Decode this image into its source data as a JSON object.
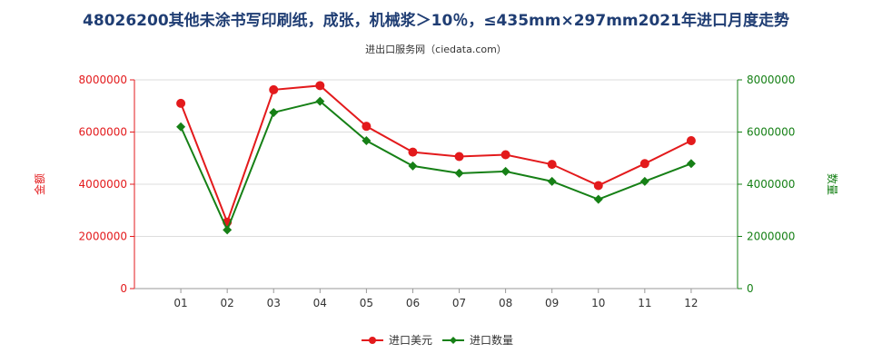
{
  "title": "48026200其他未涂书写印刷纸，成张，机械浆＞10％，≤435mm×297mm2021年进口月度走势",
  "subtitle": "进出口服务网（ciedata.com）",
  "colors": {
    "amount": "#e31a1c",
    "quantity": "#168016",
    "title": "#1f3d73"
  },
  "chart_data": {
    "type": "line",
    "categories": [
      "01",
      "02",
      "03",
      "04",
      "05",
      "06",
      "07",
      "08",
      "09",
      "10",
      "11",
      "12"
    ],
    "series": [
      {
        "name": "进口美元",
        "axis": "left",
        "values": [
          7100000,
          2550000,
          7620000,
          7780000,
          6220000,
          5230000,
          5060000,
          5130000,
          4760000,
          3950000,
          4790000,
          5670000
        ]
      },
      {
        "name": "进口数量",
        "axis": "right",
        "values": [
          6200000,
          2250000,
          6750000,
          7180000,
          5670000,
          4700000,
          4420000,
          4490000,
          4110000,
          3420000,
          4110000,
          4790000
        ]
      }
    ],
    "ylabel_left": "金额",
    "ylabel_right": "数量",
    "ylim": [
      0,
      8000000
    ],
    "yticks": [
      "0",
      "2000000",
      "4000000",
      "6000000",
      "8000000"
    ],
    "legend_position": "bottom-center"
  }
}
